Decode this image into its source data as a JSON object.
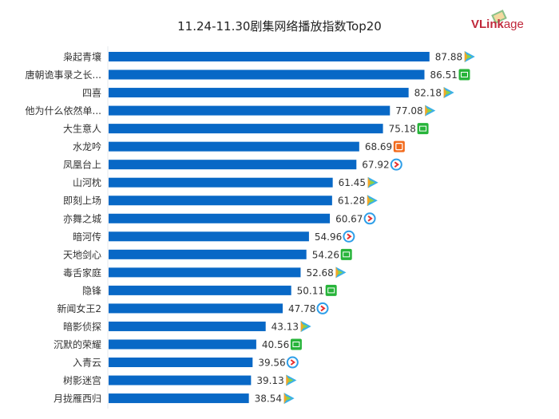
{
  "chart_data": {
    "type": "bar",
    "orientation": "horizontal",
    "title": "11.24-11.30剧集网络播放指数Top20",
    "xlim": [
      0,
      120
    ],
    "grid": false,
    "bar_color": "#0868c6",
    "categories": [
      "枭起青壤",
      "唐朝诡事录之长...",
      "四喜",
      "他为什么依然单...",
      "大生意人",
      "水龙吟",
      "凤凰台上",
      "山河枕",
      "即刻上场",
      "亦舞之城",
      "暗河传",
      "天地剑心",
      "毒舌家庭",
      "隐锋",
      "新闻女王2",
      "暗影侦探",
      "沉默的荣耀",
      "入青云",
      "树影迷宫",
      "月拢雁西归"
    ],
    "values": [
      87.88,
      86.51,
      82.18,
      77.08,
      75.18,
      68.69,
      67.92,
      61.45,
      61.28,
      60.67,
      54.96,
      54.26,
      52.68,
      50.11,
      47.78,
      43.13,
      40.56,
      39.56,
      39.13,
      38.54
    ],
    "value_labels": [
      "87.88",
      "86.51",
      "82.18",
      "77.08",
      "75.18",
      "68.69",
      "67.92",
      "61.45",
      "61.28",
      "60.67",
      "54.96",
      "54.26",
      "52.68",
      "50.11",
      "47.78",
      "43.13",
      "40.56",
      "39.56",
      "39.13",
      "38.54"
    ],
    "platform_icons": [
      "tencent-video-icon",
      "iqiyi-icon",
      "tencent-video-icon",
      "tencent-video-icon",
      "iqiyi-icon",
      "mango-tv-icon",
      "youku-icon",
      "tencent-video-icon",
      "tencent-video-icon",
      "youku-icon",
      "youku-icon",
      "iqiyi-icon",
      "tencent-video-icon",
      "iqiyi-icon",
      "youku-icon",
      "tencent-video-icon",
      "iqiyi-icon",
      "youku-icon",
      "tencent-video-icon",
      "tencent-video-icon"
    ]
  },
  "logo": {
    "text_a": "VLink",
    "text_b": "age"
  }
}
